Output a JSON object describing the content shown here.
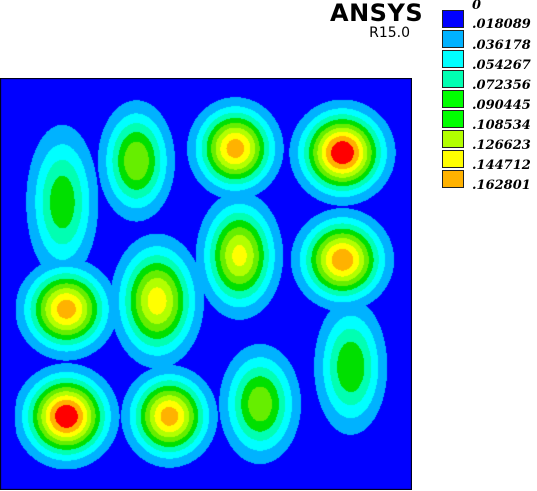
{
  "header": {
    "brand": "ANSYS",
    "version": "R15.0"
  },
  "legend": {
    "items": [
      {
        "label": "0",
        "color": "#0000ff"
      },
      {
        "label": ".018089",
        "color": "#00b2ff"
      },
      {
        "label": ".036178",
        "color": "#00ffff"
      },
      {
        "label": ".054267",
        "color": "#00ffb2"
      },
      {
        "label": ".072356",
        "color": "#00ff00"
      },
      {
        "label": ".090445",
        "color": "#00ff00"
      },
      {
        "label": ".108534",
        "color": "#b2ff00"
      },
      {
        "label": ".126623",
        "color": "#ffff00"
      },
      {
        "label": ".144712",
        "color": "#ffb200"
      },
      {
        "label": ".162801",
        "color": "#ff0000"
      }
    ]
  },
  "plot": {
    "background": "#0000ff",
    "band_colors": [
      "#0000ff",
      "#00b2ff",
      "#00ffff",
      "#00ffb2",
      "#00e000",
      "#66ee00",
      "#b2ff00",
      "#ffff00",
      "#ffb200",
      "#ff0000"
    ]
  }
}
